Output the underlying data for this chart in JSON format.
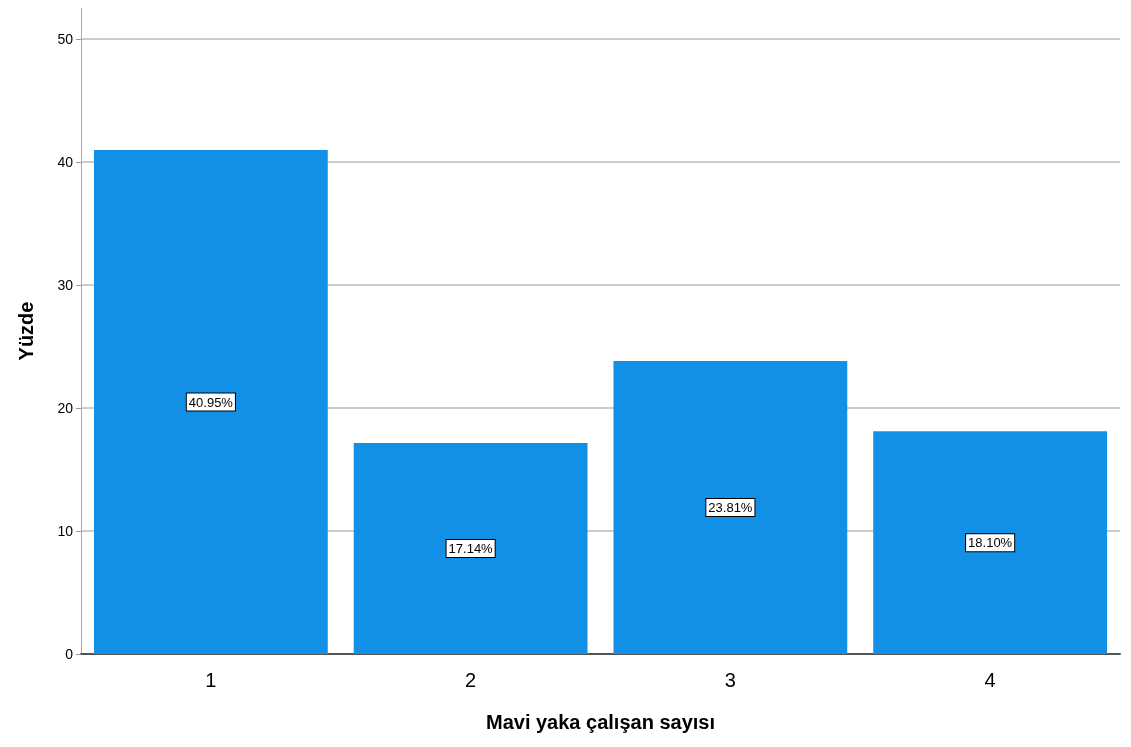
{
  "chart_data": {
    "type": "bar",
    "xlabel": "Mavi yaka çalışan sayısı",
    "ylabel": "Yüzde",
    "categories": [
      "1",
      "2",
      "3",
      "4"
    ],
    "values": [
      40.95,
      17.14,
      23.81,
      18.1
    ],
    "value_labels": [
      "40.95%",
      "17.14%",
      "23.81%",
      "18.10%"
    ],
    "color": "#1190e6",
    "ylim": [
      0,
      52.5
    ],
    "yticks": [
      0,
      10,
      20,
      30,
      40,
      50
    ],
    "grid": "y"
  }
}
